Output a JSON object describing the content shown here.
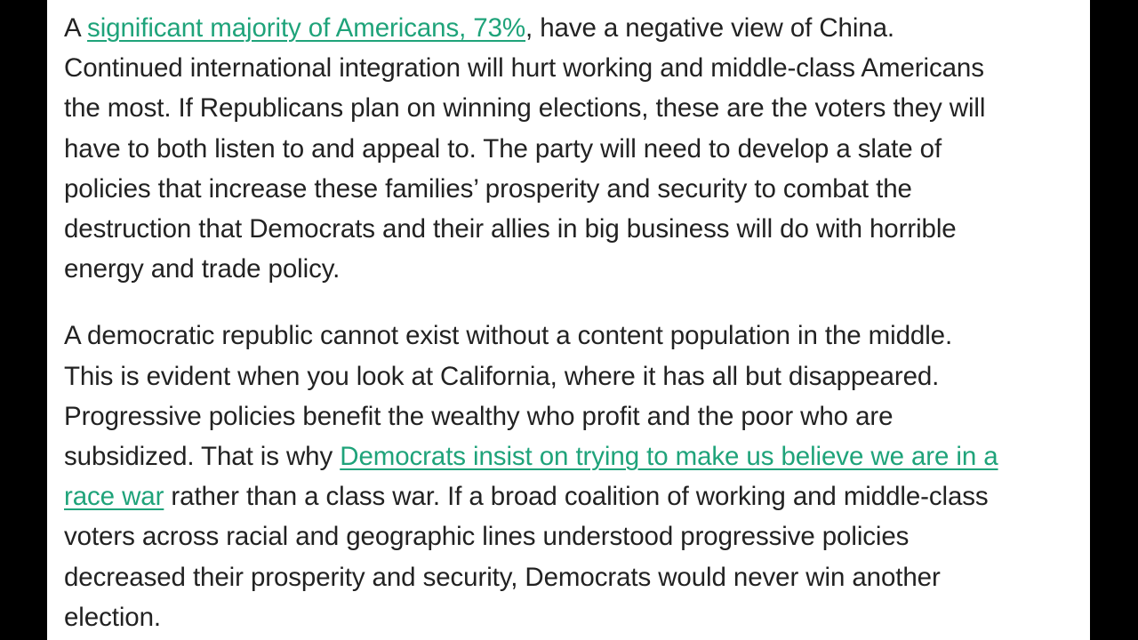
{
  "paragraph_1": {
    "lines": {
      "l1_pre": "A ",
      "l1_link": "significant majority of Americans, 73%",
      "l1_post": ", have a negative view of China.",
      "l2": "Continued international integration will hurt working and middle-class Americans",
      "l3": "the most. If Republicans plan on winning elections, these are the voters they will",
      "l4": "have to both listen to and appeal to. The party will need to develop a slate of",
      "l5": "policies that increase these families’ prosperity and security to combat the",
      "l6": "destruction that Democrats and their allies in big business will do with horrible",
      "l7": "energy and trade policy."
    }
  },
  "paragraph_2": {
    "lines": {
      "l1": "A democratic republic cannot exist without a content population in the middle.",
      "l2": "This is evident when you look at California, where it has all but disappeared.",
      "l3": "Progressive policies benefit the wealthy who profit and the poor who are",
      "l4_pre": "subsidized. That is why ",
      "l4_link": "Democrats insist on trying to make us believe we are in a",
      "l5_link": "race war",
      "l5_post": " rather than a class war. If a broad coalition of working and middle-class",
      "l6": "voters across racial and geographic lines understood progressive policies",
      "l7": "decreased their prosperity and security, Democrats would never win another",
      "l8": "election."
    }
  },
  "colors": {
    "text": "#222222",
    "link": "#1fa37a",
    "page_background": "#ffffff",
    "side_bars": "#000000"
  }
}
